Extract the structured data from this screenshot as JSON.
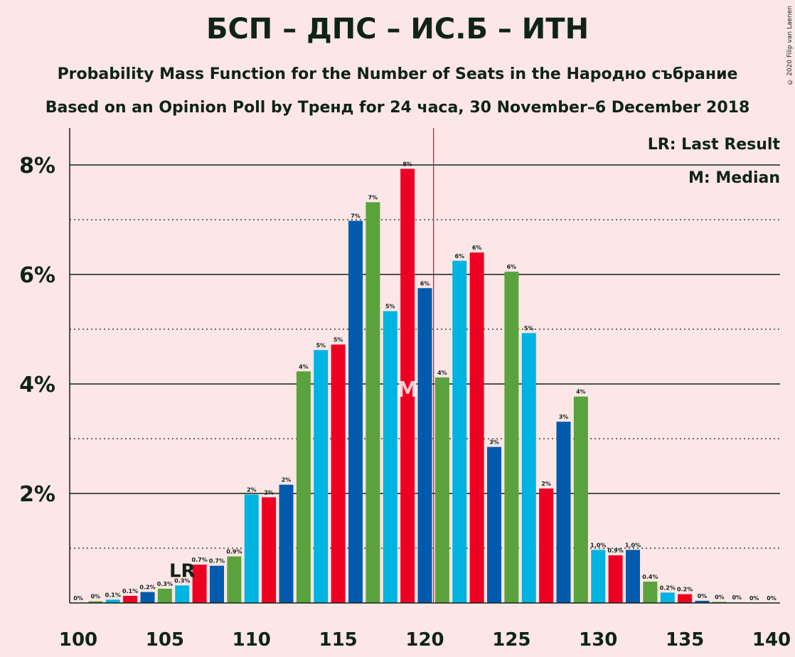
{
  "title": "БСП – ДПС – ИС.Б – ИТН",
  "subtitle": "Probability Mass Function for the Number of Seats in the Народно събрание",
  "subtitle2": "Based on an Opinion Poll by Тренд for 24 часа, 30 November–6 December 2018",
  "copyright": "© 2020 Filip van Laenen",
  "legend": {
    "lr": "LR: Last Result",
    "median": "M: Median"
  },
  "markers": {
    "lr_label": "LR",
    "median_label": "M"
  },
  "colors": [
    "#005BAC",
    "#5AA33C",
    "#00B4E2",
    "#EE0022"
  ],
  "chart_data": {
    "type": "bar",
    "x": [
      100,
      101,
      102,
      103,
      104,
      105,
      106,
      107,
      108,
      109,
      110,
      111,
      112,
      113,
      114,
      115,
      116,
      117,
      118,
      119,
      120,
      121,
      122,
      123,
      124,
      125,
      126,
      127,
      128,
      129,
      130,
      131,
      132,
      133,
      134,
      135,
      136,
      137,
      138,
      139,
      140
    ],
    "values": [
      0,
      0.03,
      0.06,
      0.13,
      0.2,
      0.26,
      0.32,
      0.7,
      0.68,
      0.85,
      1.98,
      1.93,
      2.16,
      4.23,
      4.62,
      4.72,
      6.98,
      7.32,
      5.33,
      7.93,
      5.75,
      4.12,
      6.25,
      6.4,
      2.85,
      6.05,
      4.93,
      2.09,
      3.31,
      3.77,
      0.97,
      0.87,
      0.97,
      0.39,
      0.19,
      0.16,
      0.04,
      0.02,
      0.01,
      0,
      0
    ],
    "labels": [
      "0%",
      "0%",
      "0.1%",
      "0.1%",
      "0.2%",
      "0.3%",
      "0.3%",
      "0.7%",
      "0.7%",
      "0.9%",
      "2%",
      "2%",
      "2%",
      "4%",
      "5%",
      "5%",
      "7%",
      "7%",
      "5%",
      "8%",
      "6%",
      "4%",
      "6%",
      "6%",
      "3%",
      "6%",
      "5%",
      "2%",
      "3%",
      "4%",
      "1.0%",
      "0.9%",
      "1.0%",
      "0.4%",
      "0.2%",
      "0.2%",
      "0%",
      "0%",
      "0%",
      "0%",
      "0%"
    ],
    "x_ticks": [
      "100",
      "105",
      "110",
      "115",
      "120",
      "125",
      "130",
      "135",
      "140"
    ],
    "y_ticks": [
      "2%",
      "4%",
      "6%",
      "8%"
    ],
    "ylim": [
      0,
      8.6
    ],
    "last_result": 106,
    "median": 119,
    "majority_line": 120.5,
    "grid": true
  }
}
